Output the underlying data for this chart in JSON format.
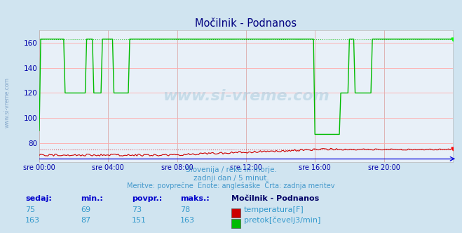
{
  "title": "Močilnik - Podnanos",
  "bg_color": "#d0e4f0",
  "plot_bg_color": "#e8f0f8",
  "grid_color_h": "#ffaaaa",
  "grid_color_v": "#ddaaaa",
  "xlim": [
    0,
    288
  ],
  "ylim": [
    65,
    170
  ],
  "yticks": [
    80,
    100,
    120,
    140,
    160
  ],
  "xtick_labels": [
    "sre 00:00",
    "sre 04:00",
    "sre 08:00",
    "sre 12:00",
    "sre 16:00",
    "sre 20:00"
  ],
  "xtick_positions": [
    0,
    48,
    96,
    144,
    192,
    240
  ],
  "title_color": "#000080",
  "tick_color": "#0000aa",
  "label_color": "#4499cc",
  "footer_lines": [
    "Slovenija / reke in morje.",
    "zadnji dan / 5 minut.",
    "Meritve: povprečne  Enote: anglešaške  Črta: zadnja meritev"
  ],
  "temp_color": "#cc0000",
  "flow_color": "#00bb00",
  "height_color": "#0000dd",
  "watermark": "www.si-vreme.com",
  "table_header": "Močilnik - Podnanos",
  "table_col_labels": [
    "sedaj:",
    "min.:",
    "povpr.:",
    "maks.:"
  ],
  "temp_row": [
    "75",
    "69",
    "73",
    "78"
  ],
  "flow_row": [
    "163",
    "87",
    "151",
    "163"
  ],
  "temp_label": "temperatura[F]",
  "flow_label": "pretok[čevelj3/min]",
  "sidebar_text": "www.si-vreme.com"
}
